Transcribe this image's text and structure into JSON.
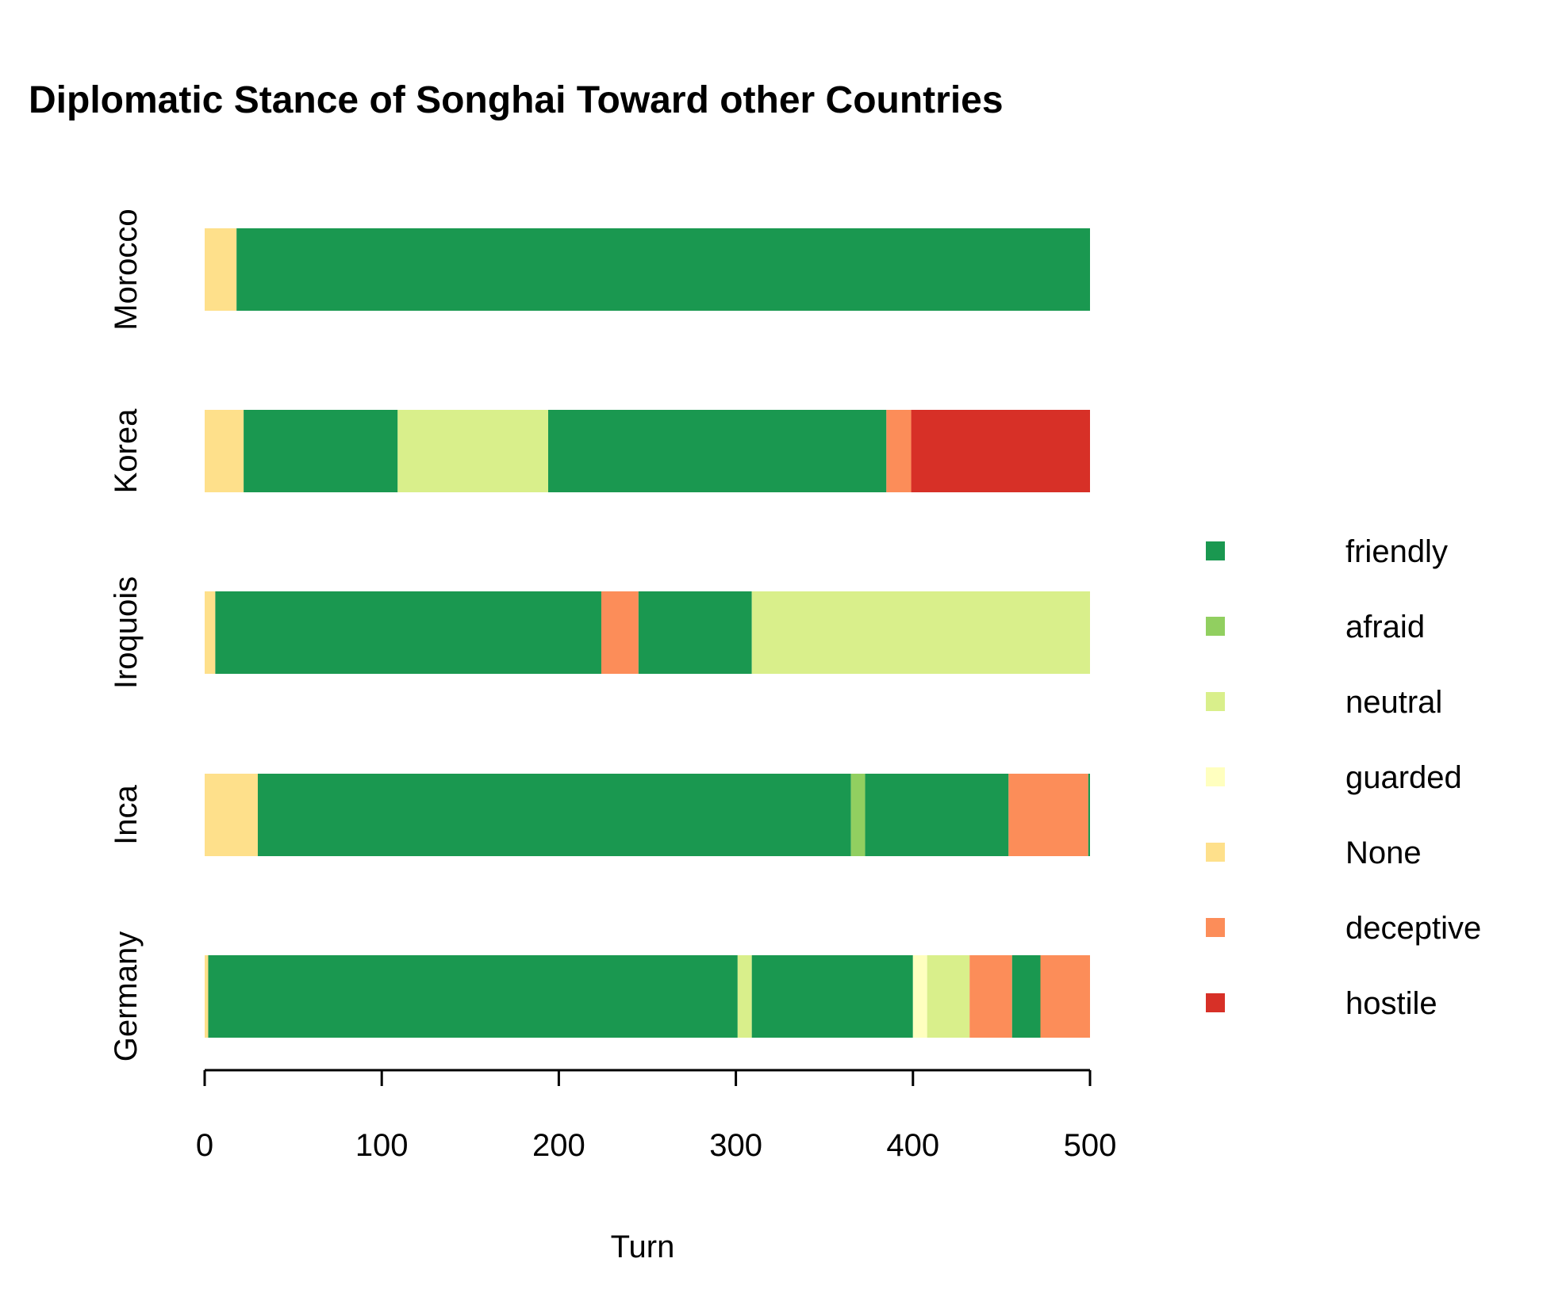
{
  "chart_data": {
    "type": "bar",
    "orientation": "horizontal",
    "stacked": true,
    "title": "Diplomatic Stance of Songhai Toward other Countries",
    "xlabel": "Turn",
    "ylabel": "",
    "xlim": [
      0,
      500
    ],
    "xticks": [
      "0",
      "100",
      "200",
      "300",
      "400",
      "500"
    ],
    "categories": [
      "Morocco",
      "Korea",
      "Iroquois",
      "Inca",
      "Germany"
    ],
    "colors": {
      "friendly": "#1a9850",
      "afraid": "#91cf60",
      "neutral": "#d9ef8b",
      "guarded": "#ffffbf",
      "None": "#fee08b",
      "deceptive": "#fc8d59",
      "hostile": "#d73027"
    },
    "legend": {
      "position": "right",
      "entries": [
        "friendly",
        "afraid",
        "neutral",
        "guarded",
        "None",
        "deceptive",
        "hostile"
      ]
    },
    "bars": [
      {
        "category": "Morocco",
        "segments": [
          {
            "stance": "None",
            "start": 0,
            "end": 18
          },
          {
            "stance": "friendly",
            "start": 18,
            "end": 500
          }
        ]
      },
      {
        "category": "Korea",
        "segments": [
          {
            "stance": "None",
            "start": 0,
            "end": 22
          },
          {
            "stance": "friendly",
            "start": 22,
            "end": 109
          },
          {
            "stance": "neutral",
            "start": 109,
            "end": 194
          },
          {
            "stance": "friendly",
            "start": 194,
            "end": 385
          },
          {
            "stance": "deceptive",
            "start": 385,
            "end": 399
          },
          {
            "stance": "hostile",
            "start": 399,
            "end": 500
          }
        ]
      },
      {
        "category": "Iroquois",
        "segments": [
          {
            "stance": "None",
            "start": 0,
            "end": 6
          },
          {
            "stance": "friendly",
            "start": 6,
            "end": 224
          },
          {
            "stance": "deceptive",
            "start": 224,
            "end": 245
          },
          {
            "stance": "friendly",
            "start": 245,
            "end": 309
          },
          {
            "stance": "neutral",
            "start": 309,
            "end": 500
          }
        ]
      },
      {
        "category": "Inca",
        "segments": [
          {
            "stance": "None",
            "start": 0,
            "end": 30
          },
          {
            "stance": "friendly",
            "start": 30,
            "end": 365
          },
          {
            "stance": "afraid",
            "start": 365,
            "end": 373
          },
          {
            "stance": "friendly",
            "start": 373,
            "end": 454
          },
          {
            "stance": "deceptive",
            "start": 454,
            "end": 499
          },
          {
            "stance": "friendly",
            "start": 499,
            "end": 500
          }
        ]
      },
      {
        "category": "Germany",
        "segments": [
          {
            "stance": "None",
            "start": 0,
            "end": 2
          },
          {
            "stance": "friendly",
            "start": 2,
            "end": 301
          },
          {
            "stance": "neutral",
            "start": 301,
            "end": 309
          },
          {
            "stance": "friendly",
            "start": 309,
            "end": 400
          },
          {
            "stance": "guarded",
            "start": 400,
            "end": 408
          },
          {
            "stance": "neutral",
            "start": 408,
            "end": 432
          },
          {
            "stance": "deceptive",
            "start": 432,
            "end": 456
          },
          {
            "stance": "friendly",
            "start": 456,
            "end": 472
          },
          {
            "stance": "deceptive",
            "start": 472,
            "end": 500
          }
        ]
      }
    ]
  }
}
